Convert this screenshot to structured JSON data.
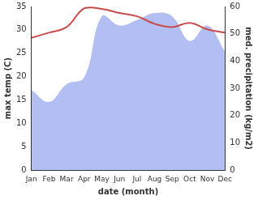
{
  "chart_data": {
    "type": "line",
    "categories": [
      "Jan",
      "Feb",
      "Mar",
      "Apr",
      "May",
      "Jun",
      "Jul",
      "Aug",
      "Sep",
      "Oct",
      "Nov",
      "Dec"
    ],
    "x_label": "date (month)",
    "y_label": "max temp (C)",
    "y2_label": "med. precipitation (kg/m2)",
    "ylim": [
      0,
      35
    ],
    "yticks": [
      0,
      5,
      10,
      15,
      20,
      25,
      30,
      35
    ],
    "y2lim": [
      0,
      60
    ],
    "y2ticks": [
      0,
      10,
      20,
      30,
      40,
      50,
      60
    ],
    "grid": false,
    "series": [
      {
        "type": "area",
        "axis": "y2",
        "color": "#b3bff2",
        "values": [
          29.4,
          25,
          31.5,
          34,
          56.4,
          53,
          55,
          57.6,
          56.4,
          47.4,
          53,
          43.5
        ]
      },
      {
        "type": "line",
        "color": "#c84a4a",
        "values": [
          28.3,
          29.4,
          30.6,
          34.6,
          34.5,
          33.6,
          32.9,
          31.3,
          30.6,
          31.5,
          30.1,
          29.4
        ]
      }
    ]
  }
}
